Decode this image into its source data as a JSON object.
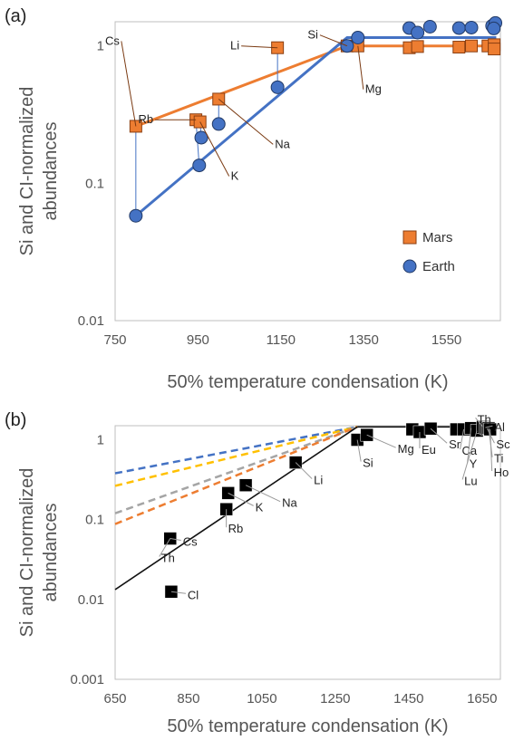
{
  "chart_data": [
    {
      "panel_label": "(a)",
      "type": "scatter",
      "xlabel": "50% temperature condensation (K)",
      "ylabel": "Si and CI-normalized abundances",
      "xlim": [
        750,
        1680
      ],
      "ylim": [
        0.01,
        1.5
      ],
      "yscale": "log",
      "xticks": [
        "750",
        "950",
        "1150",
        "1350",
        "1550"
      ],
      "yticks": [
        "1",
        "0.1",
        "0.01"
      ],
      "legend": {
        "placement": "right",
        "entries": [
          "Mars",
          "Earth"
        ]
      },
      "series": [
        {
          "name": "Mars",
          "marker": "square",
          "color": "#ED7D31",
          "points": [
            {
              "x": 800,
              "y": 0.26,
              "label": "Cs"
            },
            {
              "x": 945,
              "y": 0.29,
              "label": "Rb"
            },
            {
              "x": 955,
              "y": 0.28,
              "label": "K"
            },
            {
              "x": 1000,
              "y": 0.41,
              "label": "Na"
            },
            {
              "x": 1142,
              "y": 0.97,
              "label": "Li"
            },
            {
              "x": 1310,
              "y": 1.0,
              "label": "Si"
            },
            {
              "x": 1336,
              "y": 1.0,
              "label": "Mg"
            },
            {
              "x": 1460,
              "y": 0.97
            },
            {
              "x": 1480,
              "y": 0.99
            },
            {
              "x": 1580,
              "y": 0.98
            },
            {
              "x": 1610,
              "y": 1.0
            },
            {
              "x": 1650,
              "y": 1.0
            },
            {
              "x": 1665,
              "y": 1.02
            },
            {
              "x": 1665,
              "y": 0.95
            }
          ],
          "fit": [
            [
              800,
              0.26
            ],
            [
              1310,
              1.0
            ],
            [
              1670,
              1.0
            ]
          ]
        },
        {
          "name": "Earth",
          "marker": "circle",
          "color": "#4472C4",
          "points": [
            {
              "x": 800,
              "y": 0.058
            },
            {
              "x": 953,
              "y": 0.135
            },
            {
              "x": 958,
              "y": 0.215
            },
            {
              "x": 1000,
              "y": 0.27
            },
            {
              "x": 1142,
              "y": 0.5
            },
            {
              "x": 1310,
              "y": 1.0
            },
            {
              "x": 1336,
              "y": 1.15
            },
            {
              "x": 1460,
              "y": 1.35
            },
            {
              "x": 1480,
              "y": 1.25
            },
            {
              "x": 1510,
              "y": 1.38
            },
            {
              "x": 1580,
              "y": 1.35
            },
            {
              "x": 1610,
              "y": 1.36
            },
            {
              "x": 1660,
              "y": 1.4
            },
            {
              "x": 1668,
              "y": 1.47
            },
            {
              "x": 1664,
              "y": 1.34
            }
          ],
          "fit": [
            [
              800,
              0.058
            ],
            [
              1310,
              1.15
            ],
            [
              1670,
              1.15
            ]
          ]
        }
      ]
    },
    {
      "panel_label": "(b)",
      "type": "scatter",
      "xlabel": "50% temperature condensation (K)",
      "ylabel": "Si and CI-normalized abundances",
      "xlim": [
        650,
        1700
      ],
      "ylim": [
        0.001,
        1.5
      ],
      "yscale": "log",
      "xticks": [
        "650",
        "850",
        "1050",
        "1250",
        "1450",
        "1650"
      ],
      "yticks": [
        "1",
        "0.1",
        "0.01",
        "0.001"
      ],
      "series": [
        {
          "marker": "square",
          "color": "#000000",
          "points": [
            {
              "x": 800,
              "y": 0.058,
              "label": "Cs"
            },
            {
              "x": 800,
              "y": 0.058,
              "label": "Th"
            },
            {
              "x": 803,
              "y": 0.0125,
              "label": "Cl"
            },
            {
              "x": 953,
              "y": 0.135,
              "label": "Rb"
            },
            {
              "x": 958,
              "y": 0.215,
              "label": "K"
            },
            {
              "x": 1006,
              "y": 0.27,
              "label": "Na"
            },
            {
              "x": 1142,
              "y": 0.52,
              "label": "Li"
            },
            {
              "x": 1310,
              "y": 1.0,
              "label": "Si"
            },
            {
              "x": 1336,
              "y": 1.15,
              "label": "Mg"
            },
            {
              "x": 1460,
              "y": 1.35
            },
            {
              "x": 1480,
              "y": 1.25,
              "label": "Eu"
            },
            {
              "x": 1510,
              "y": 1.38,
              "label": "Sr"
            },
            {
              "x": 1580,
              "y": 1.35
            },
            {
              "x": 1600,
              "y": 1.35,
              "label": "Ca"
            },
            {
              "x": 1620,
              "y": 1.4,
              "label": "Y"
            },
            {
              "x": 1636,
              "y": 1.3,
              "label": "Lu"
            },
            {
              "x": 1652,
              "y": 1.45,
              "label": "Th"
            },
            {
              "x": 1659,
              "y": 1.42,
              "label": "Al"
            },
            {
              "x": 1664,
              "y": 1.38,
              "label": "Sc"
            },
            {
              "x": 1668,
              "y": 1.4,
              "label": "Ti"
            },
            {
              "x": 1672,
              "y": 1.35,
              "label": "Ho"
            }
          ],
          "fit": [
            [
              650,
              0.0133
            ],
            [
              1310,
              1.45
            ]
          ]
        }
      ],
      "dashed_lines": [
        {
          "color": "#4472C4",
          "from": [
            650,
            0.38
          ],
          "to": [
            1310,
            1.45
          ]
        },
        {
          "color": "#FFC000",
          "from": [
            650,
            0.265
          ],
          "to": [
            1310,
            1.45
          ]
        },
        {
          "color": "#A5A5A5",
          "from": [
            650,
            0.12
          ],
          "to": [
            1310,
            1.45
          ]
        },
        {
          "color": "#ED7D31",
          "from": [
            650,
            0.088
          ],
          "to": [
            1310,
            1.45
          ]
        }
      ],
      "plateau": {
        "from": [
          1310,
          1.45
        ],
        "to": [
          1690,
          1.45
        ]
      }
    }
  ]
}
